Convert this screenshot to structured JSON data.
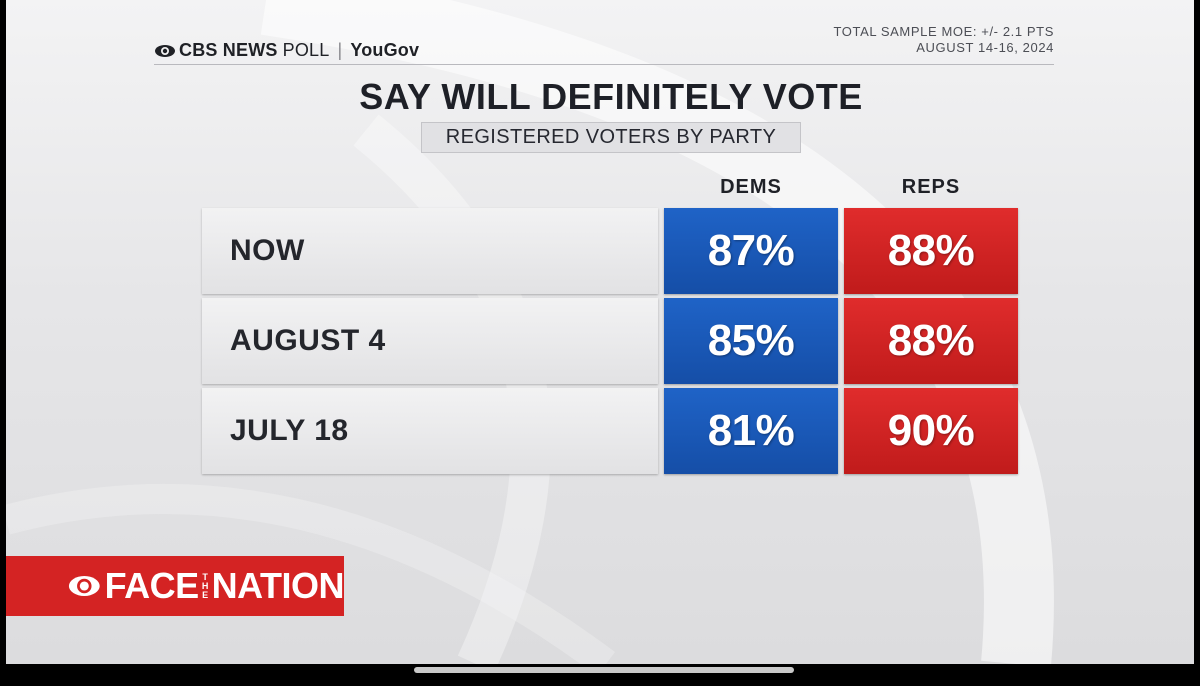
{
  "header": {
    "brand_cbs": "CBS NEWS",
    "brand_poll": "POLL",
    "brand_sep": "|",
    "brand_partner": "YouGov",
    "moe_line1": "TOTAL SAMPLE MOE: +/- 2.1 PTS",
    "moe_line2": "AUGUST 14-16, 2024"
  },
  "chart_data": {
    "type": "table",
    "title": "SAY WILL DEFINITELY VOTE",
    "subtitle": "REGISTERED VOTERS BY PARTY",
    "columns": [
      "DEMS",
      "REPS"
    ],
    "rows": [
      {
        "label": "NOW",
        "dems": "87%",
        "reps": "88%"
      },
      {
        "label": "AUGUST 4",
        "dems": "85%",
        "reps": "88%"
      },
      {
        "label": "JULY 18",
        "dems": "81%",
        "reps": "90%"
      }
    ],
    "series": [
      {
        "name": "DEMS",
        "values": [
          87,
          85,
          81
        ]
      },
      {
        "name": "REPS",
        "values": [
          88,
          88,
          90
        ]
      }
    ],
    "colors": {
      "dems": "#1a5bbf",
      "reps": "#d52424"
    }
  },
  "footer": {
    "logo_face": "FACE",
    "logo_the": "THE",
    "logo_nation": "NATION",
    "logo_color": "#d42323"
  }
}
